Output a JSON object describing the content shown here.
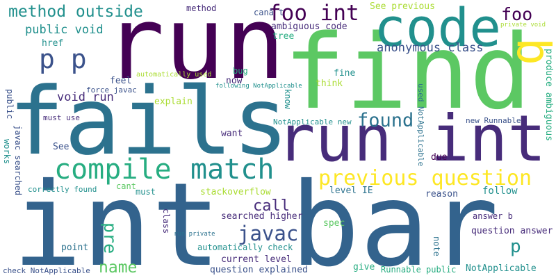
{
  "palette": {
    "dark_purple": "#440154",
    "indigo": "#472c7a",
    "blue": "#3b528b",
    "steel_blue": "#33638d",
    "teal_blue": "#2c728e",
    "teal": "#21908d",
    "sea_green": "#27ad81",
    "green": "#5cc863",
    "lime": "#aadc32",
    "yellow": "#fde725",
    "background": "#ffffff"
  },
  "words": [
    {
      "text": "int bar",
      "color": "#33638d"
    },
    {
      "text": "run",
      "color": "#440154"
    },
    {
      "text": "find",
      "color": "#5cc863"
    },
    {
      "text": "fails",
      "color": "#2c728e"
    },
    {
      "text": "run int",
      "color": "#472c7a"
    },
    {
      "text": "code",
      "color": "#21908d"
    },
    {
      "text": "b",
      "color": "#fde725"
    },
    {
      "text": "compile",
      "color": "#27ad81"
    },
    {
      "text": "match",
      "color": "#21908d"
    },
    {
      "text": "previous question",
      "color": "#fde725"
    },
    {
      "text": "foo int",
      "color": "#440154"
    },
    {
      "text": "method outside",
      "color": "#21908d"
    },
    {
      "text": "p p",
      "color": "#3b528b"
    },
    {
      "text": "found",
      "color": "#2c728e"
    },
    {
      "text": "javac",
      "color": "#3b528b"
    },
    {
      "text": "call",
      "color": "#472c7a"
    },
    {
      "text": "name",
      "color": "#5cc863"
    },
    {
      "text": "foo",
      "color": "#440154"
    },
    {
      "text": "pre",
      "color": "#27ad81"
    },
    {
      "text": "p",
      "color": "#21908d"
    },
    {
      "text": "public void",
      "color": "#21908d"
    },
    {
      "text": "void run",
      "color": "#472c7a"
    },
    {
      "text": "anonymous class",
      "color": "#3b528b"
    },
    {
      "text": "ambiguous code",
      "color": "#472c7a"
    },
    {
      "text": "method",
      "color": "#472c7a"
    },
    {
      "text": "canâ t",
      "color": "#3b528b"
    },
    {
      "text": "See previous",
      "color": "#aadc32"
    },
    {
      "text": "private void",
      "color": "#aadc32"
    },
    {
      "text": "href",
      "color": "#21908d"
    },
    {
      "text": "tree",
      "color": "#27ad81"
    },
    {
      "text": "now",
      "color": "#472c7a"
    },
    {
      "text": "bug",
      "color": "#27ad81"
    },
    {
      "text": "fine",
      "color": "#21908d"
    },
    {
      "text": "think",
      "color": "#aadc32"
    },
    {
      "text": "feel",
      "color": "#3b528b"
    },
    {
      "text": "automatically used",
      "color": "#aadc32"
    },
    {
      "text": "following NotApplicable",
      "color": "#21908d"
    },
    {
      "text": "used NotApplicable",
      "color": "#2c728e"
    },
    {
      "text": "produce ambiguous",
      "color": "#27ad81"
    },
    {
      "text": "force javac",
      "color": "#3b528b"
    },
    {
      "text": "explain",
      "color": "#aadc32"
    },
    {
      "text": "know",
      "color": "#21908d"
    },
    {
      "text": "NotApplicable new",
      "color": "#21908d"
    },
    {
      "text": "new Runnable",
      "color": "#3b528b"
    },
    {
      "text": "public",
      "color": "#3b528b"
    },
    {
      "text": "must use",
      "color": "#472c7a"
    },
    {
      "text": "want",
      "color": "#472c7a"
    },
    {
      "text": "See",
      "color": "#3b528b"
    },
    {
      "text": "works",
      "color": "#21908d"
    },
    {
      "text": "javac searched",
      "color": "#3b528b"
    },
    {
      "text": "correctly found",
      "color": "#21908d"
    },
    {
      "text": "cant",
      "color": "#5cc863"
    },
    {
      "text": "due",
      "color": "#440154"
    },
    {
      "text": "must",
      "color": "#21908d"
    },
    {
      "text": "stackoverflow",
      "color": "#aadc32"
    },
    {
      "text": "level IE",
      "color": "#2c728e"
    },
    {
      "text": "reason",
      "color": "#3b528b"
    },
    {
      "text": "follow",
      "color": "#21908d"
    },
    {
      "text": "searched higher",
      "color": "#472c7a"
    },
    {
      "text": "answer b",
      "color": "#472c7a"
    },
    {
      "text": "class",
      "color": "#472c7a"
    },
    {
      "text": "run private",
      "color": "#2c728e"
    },
    {
      "text": "spec",
      "color": "#5cc863"
    },
    {
      "text": "question answer",
      "color": "#472c7a"
    },
    {
      "text": "point",
      "color": "#2c728e"
    },
    {
      "text": "automatically check",
      "color": "#21908d"
    },
    {
      "text": "note",
      "color": "#2c728e"
    },
    {
      "text": "current level",
      "color": "#472c7a"
    },
    {
      "text": "check NotApplicable",
      "color": "#3b528b"
    },
    {
      "text": "question explained",
      "color": "#3b528b"
    },
    {
      "text": "give",
      "color": "#27ad81"
    },
    {
      "text": "Runnable public",
      "color": "#27ad81"
    },
    {
      "text": "NotApplicable",
      "color": "#21908d"
    }
  ]
}
